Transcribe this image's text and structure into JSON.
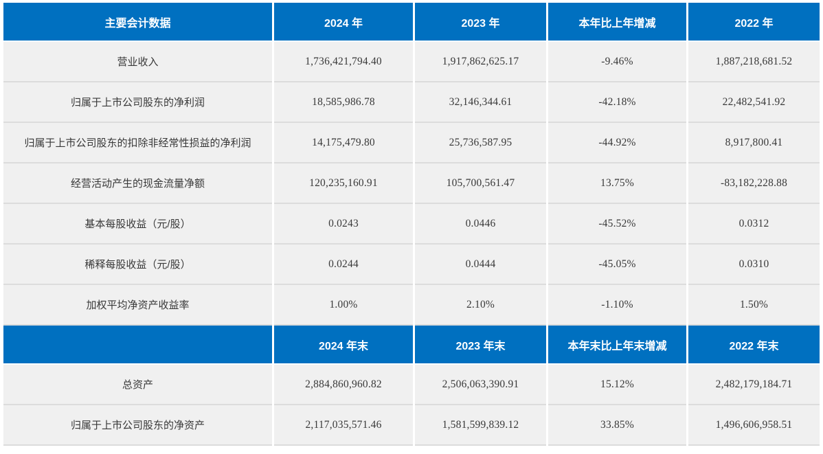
{
  "colors": {
    "header_bg": "#0070c0",
    "header_text": "#ffffff",
    "row_bg": "#f0f0f0",
    "grid_line": "#dcdcdc",
    "body_text": "#383838"
  },
  "table": {
    "section1": {
      "headers": [
        "主要会计数据",
        "2024 年",
        "2023 年",
        "本年比上年增减",
        "2022 年"
      ],
      "rows": [
        [
          "营业收入",
          "1,736,421,794.40",
          "1,917,862,625.17",
          "-9.46%",
          "1,887,218,681.52"
        ],
        [
          "归属于上市公司股东的净利润",
          "18,585,986.78",
          "32,146,344.61",
          "-42.18%",
          "22,482,541.92"
        ],
        [
          "归属于上市公司股东的扣除非经常性损益的净利润",
          "14,175,479.80",
          "25,736,587.95",
          "-44.92%",
          "8,917,800.41"
        ],
        [
          "经营活动产生的现金流量净额",
          "120,235,160.91",
          "105,700,561.47",
          "13.75%",
          "-83,182,228.88"
        ],
        [
          "基本每股收益（元/股）",
          "0.0243",
          "0.0446",
          "-45.52%",
          "0.0312"
        ],
        [
          "稀释每股收益（元/股）",
          "0.0244",
          "0.0444",
          "-45.05%",
          "0.0310"
        ],
        [
          "加权平均净资产收益率",
          "1.00%",
          "2.10%",
          "-1.10%",
          "1.50%"
        ]
      ]
    },
    "section2": {
      "headers": [
        "",
        "2024 年末",
        "2023 年末",
        "本年末比上年末增减",
        "2022 年末"
      ],
      "rows": [
        [
          "总资产",
          "2,884,860,960.82",
          "2,506,063,390.91",
          "15.12%",
          "2,482,179,184.71"
        ],
        [
          "归属于上市公司股东的净资产",
          "2,117,035,571.46",
          "1,581,599,839.12",
          "33.85%",
          "1,496,606,958.51"
        ]
      ]
    }
  }
}
